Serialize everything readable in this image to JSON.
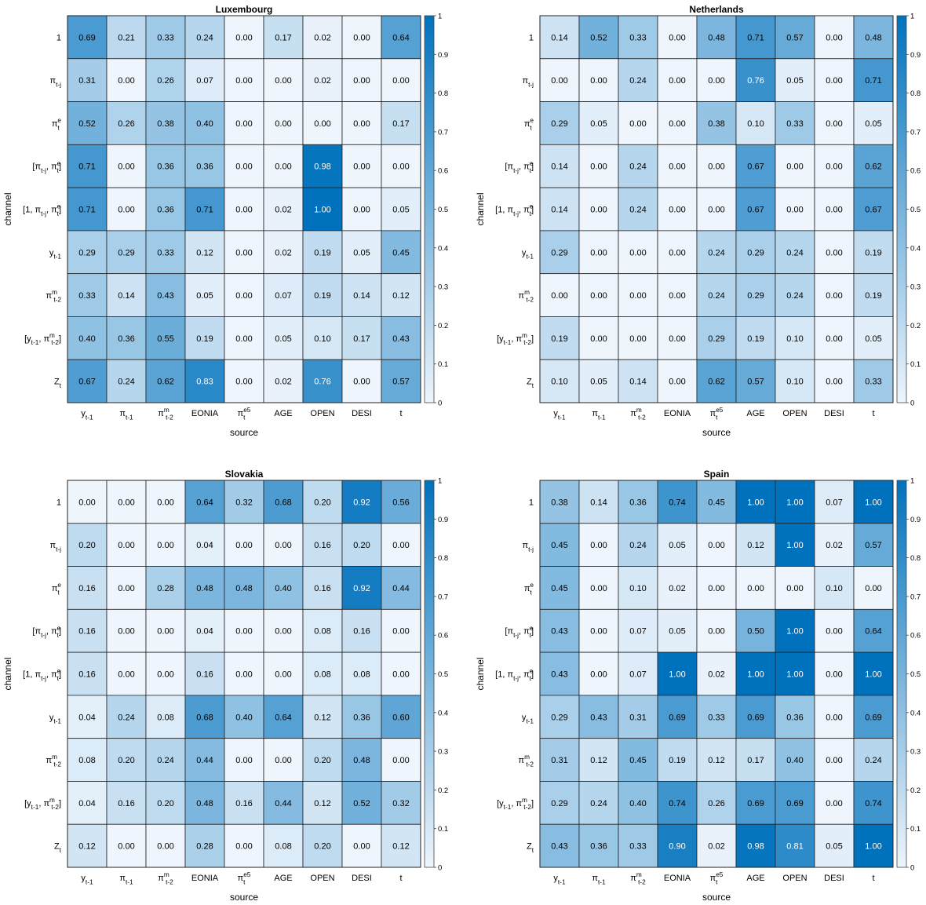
{
  "chart_data": [
    {
      "type": "heatmap",
      "title": "Luxembourg",
      "xlabel": "source",
      "ylabel": "channel",
      "x_categories": [
        "y_{t-1}",
        "π_{t-1}",
        "π^m_{t-2}",
        "EONIA",
        "π^{e5}_t",
        "AGE",
        "OPEN",
        "DESI",
        "t"
      ],
      "y_categories": [
        "1",
        "π_{t-j}",
        "π^e_t",
        "[π_{t-j}, π^e_t]",
        "[1, π_{t-j}, π^e_t]",
        "y_{t-1}",
        "π^m_{t-2}",
        "[y_{t-1}, π^m_{t-2}]",
        "Z_t"
      ],
      "values": [
        [
          0.69,
          0.21,
          0.33,
          0.24,
          0.0,
          0.17,
          0.02,
          0.0,
          0.64
        ],
        [
          0.31,
          0.0,
          0.26,
          0.07,
          0.0,
          0.0,
          0.02,
          0.0,
          0.0
        ],
        [
          0.52,
          0.26,
          0.38,
          0.4,
          0.0,
          0.0,
          0.0,
          0.0,
          0.17
        ],
        [
          0.71,
          0.0,
          0.36,
          0.36,
          0.0,
          0.0,
          0.98,
          0.0,
          0.0
        ],
        [
          0.71,
          0.0,
          0.36,
          0.71,
          0.0,
          0.02,
          1.0,
          0.0,
          0.05
        ],
        [
          0.29,
          0.29,
          0.33,
          0.12,
          0.0,
          0.02,
          0.19,
          0.05,
          0.45
        ],
        [
          0.33,
          0.14,
          0.43,
          0.05,
          0.0,
          0.07,
          0.19,
          0.14,
          0.12
        ],
        [
          0.4,
          0.36,
          0.55,
          0.19,
          0.0,
          0.05,
          0.1,
          0.17,
          0.43
        ],
        [
          0.67,
          0.24,
          0.62,
          0.83,
          0.0,
          0.02,
          0.76,
          0.0,
          0.57
        ]
      ],
      "colorbar": {
        "range": [
          0,
          1
        ],
        "ticks": [
          "0",
          "0.1",
          "0.2",
          "0.3",
          "0.4",
          "0.5",
          "0.6",
          "0.7",
          "0.8",
          "0.9",
          "1"
        ]
      }
    },
    {
      "type": "heatmap",
      "title": "Netherlands",
      "xlabel": "source",
      "ylabel": "channel",
      "x_categories": [
        "y_{t-1}",
        "π_{t-1}",
        "π^m_{t-2}",
        "EONIA",
        "π^{e5}_t",
        "AGE",
        "OPEN",
        "DESI",
        "t"
      ],
      "y_categories": [
        "1",
        "π_{t-j}",
        "π^e_t",
        "[π_{t-j}, π^e_t]",
        "[1, π_{t-j}, π^e_t]",
        "y_{t-1}",
        "π^m_{t-2}",
        "[y_{t-1}, π^m_{t-2}]",
        "Z_t"
      ],
      "values": [
        [
          0.14,
          0.52,
          0.33,
          0.0,
          0.48,
          0.71,
          0.57,
          0.0,
          0.48
        ],
        [
          0.0,
          0.0,
          0.24,
          0.0,
          0.0,
          0.76,
          0.05,
          0.0,
          0.71
        ],
        [
          0.29,
          0.05,
          0.0,
          0.0,
          0.38,
          0.1,
          0.33,
          0.0,
          0.05
        ],
        [
          0.14,
          0.0,
          0.24,
          0.0,
          0.0,
          0.67,
          0.0,
          0.0,
          0.62
        ],
        [
          0.14,
          0.0,
          0.24,
          0.0,
          0.0,
          0.67,
          0.0,
          0.0,
          0.67
        ],
        [
          0.29,
          0.0,
          0.0,
          0.0,
          0.24,
          0.29,
          0.24,
          0.0,
          0.19
        ],
        [
          0.0,
          0.0,
          0.0,
          0.0,
          0.24,
          0.29,
          0.24,
          0.0,
          0.19
        ],
        [
          0.19,
          0.0,
          0.0,
          0.0,
          0.29,
          0.19,
          0.1,
          0.0,
          0.05
        ],
        [
          0.1,
          0.05,
          0.14,
          0.0,
          0.62,
          0.57,
          0.1,
          0.0,
          0.33
        ]
      ],
      "colorbar": {
        "range": [
          0,
          1
        ],
        "ticks": [
          "0",
          "0.1",
          "0.2",
          "0.3",
          "0.4",
          "0.5",
          "0.6",
          "0.7",
          "0.8",
          "0.9",
          "1"
        ]
      }
    },
    {
      "type": "heatmap",
      "title": "Slovakia",
      "xlabel": "source",
      "ylabel": "channel",
      "x_categories": [
        "y_{t-1}",
        "π_{t-1}",
        "π^m_{t-2}",
        "EONIA",
        "π^{e5}_t",
        "AGE",
        "OPEN",
        "DESI",
        "t"
      ],
      "y_categories": [
        "1",
        "π_{t-j}",
        "π^e_t",
        "[π_{t-j}, π^e_t]",
        "[1, π_{t-j}, π^e_t]",
        "y_{t-1}",
        "π^m_{t-2}",
        "[y_{t-1}, π^m_{t-2}]",
        "Z_t"
      ],
      "values": [
        [
          0.0,
          0.0,
          0.0,
          0.64,
          0.32,
          0.68,
          0.2,
          0.92,
          0.56
        ],
        [
          0.2,
          0.0,
          0.0,
          0.04,
          0.0,
          0.0,
          0.16,
          0.2,
          0.0
        ],
        [
          0.16,
          0.0,
          0.28,
          0.48,
          0.48,
          0.4,
          0.16,
          0.92,
          0.44
        ],
        [
          0.16,
          0.0,
          0.0,
          0.04,
          0.0,
          0.0,
          0.08,
          0.16,
          0.0
        ],
        [
          0.16,
          0.0,
          0.0,
          0.16,
          0.0,
          0.0,
          0.08,
          0.08,
          0.0
        ],
        [
          0.04,
          0.24,
          0.08,
          0.68,
          0.4,
          0.64,
          0.12,
          0.36,
          0.6
        ],
        [
          0.08,
          0.2,
          0.24,
          0.44,
          0.0,
          0.0,
          0.2,
          0.48,
          0.0
        ],
        [
          0.04,
          0.16,
          0.2,
          0.48,
          0.16,
          0.44,
          0.12,
          0.52,
          0.32
        ],
        [
          0.12,
          0.0,
          0.0,
          0.28,
          0.0,
          0.08,
          0.2,
          0.0,
          0.12
        ]
      ],
      "colorbar": {
        "range": [
          0,
          1
        ],
        "ticks": [
          "0",
          "0.1",
          "0.2",
          "0.3",
          "0.4",
          "0.5",
          "0.6",
          "0.7",
          "0.8",
          "0.9",
          "1"
        ]
      }
    },
    {
      "type": "heatmap",
      "title": "Spain",
      "xlabel": "source",
      "ylabel": "channel",
      "x_categories": [
        "y_{t-1}",
        "π_{t-1}",
        "π^m_{t-2}",
        "EONIA",
        "π^{e5}_t",
        "AGE",
        "OPEN",
        "DESI",
        "t"
      ],
      "y_categories": [
        "1",
        "π_{t-j}",
        "π^e_t",
        "[π_{t-j}, π^e_t]",
        "[1, π_{t-j}, π^e_t]",
        "y_{t-1}",
        "π^m_{t-2}",
        "[y_{t-1}, π^m_{t-2}]",
        "Z_t"
      ],
      "values": [
        [
          0.38,
          0.14,
          0.36,
          0.74,
          0.45,
          1.0,
          1.0,
          0.07,
          1.0
        ],
        [
          0.45,
          0.0,
          0.24,
          0.05,
          0.0,
          0.12,
          1.0,
          0.02,
          0.57
        ],
        [
          0.45,
          0.0,
          0.1,
          0.02,
          0.0,
          0.0,
          0.0,
          0.1,
          0.0
        ],
        [
          0.43,
          0.0,
          0.07,
          0.05,
          0.0,
          0.5,
          1.0,
          0.0,
          0.64
        ],
        [
          0.43,
          0.0,
          0.07,
          1.0,
          0.02,
          1.0,
          1.0,
          0.0,
          1.0
        ],
        [
          0.29,
          0.43,
          0.31,
          0.69,
          0.33,
          0.69,
          0.36,
          0.0,
          0.69
        ],
        [
          0.31,
          0.12,
          0.45,
          0.19,
          0.12,
          0.17,
          0.4,
          0.0,
          0.24
        ],
        [
          0.29,
          0.24,
          0.4,
          0.74,
          0.26,
          0.69,
          0.69,
          0.0,
          0.74
        ],
        [
          0.43,
          0.36,
          0.33,
          0.9,
          0.02,
          0.98,
          0.81,
          0.05,
          1.0
        ]
      ],
      "colorbar": {
        "range": [
          0,
          1
        ],
        "ticks": [
          "0",
          "0.1",
          "0.2",
          "0.3",
          "0.4",
          "0.5",
          "0.6",
          "0.7",
          "0.8",
          "0.9",
          "1"
        ]
      }
    }
  ],
  "colors": {
    "low": "#eef5fc",
    "high": "#0072bd",
    "grid": "#222222",
    "text_dark": "#000000",
    "text_light": "#ffffff"
  }
}
